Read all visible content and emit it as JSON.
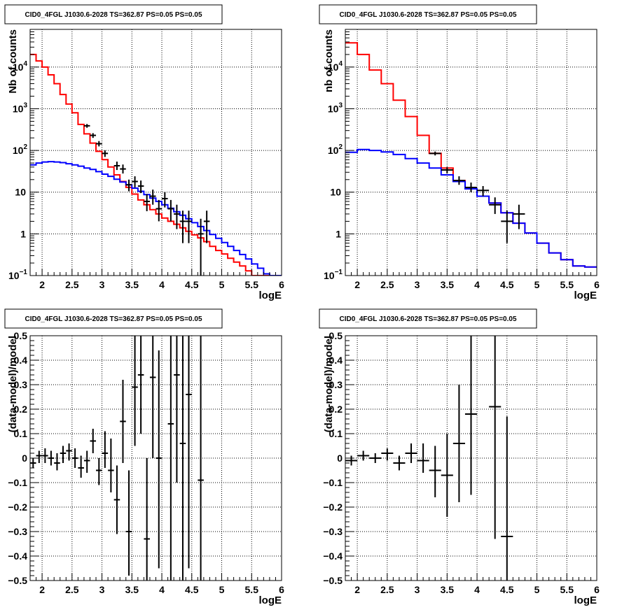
{
  "chart_data": [
    {
      "type": "line",
      "title": "CID0_4FGL J1030.6-2028 TS=362.87 PS=0.05 PS=0.05",
      "xlabel": "logE",
      "ylabel": "Nb of counts",
      "xlim": [
        1.8,
        6.0
      ],
      "ylim": [
        0.1,
        80000
      ],
      "yscale": "log",
      "grid": true,
      "xticks": [
        "2",
        "2.5",
        "3",
        "3.5",
        "4",
        "4.5",
        "5",
        "5.5",
        "6"
      ],
      "yticks": [
        {
          "value": 0.1,
          "base": "10",
          "exp": "−1"
        },
        {
          "value": 1,
          "label": "1"
        },
        {
          "value": 10,
          "label": "10"
        },
        {
          "value": 100,
          "base": "10",
          "exp": "2"
        },
        {
          "value": 1000,
          "base": "10",
          "exp": "3"
        },
        {
          "value": 10000,
          "base": "10",
          "exp": "4"
        }
      ],
      "series": [
        {
          "color": "#ff0000",
          "style": "step",
          "x0": 1.8,
          "binwidth": 0.1,
          "values": [
            20000,
            14000,
            10000,
            6500,
            4000,
            2200,
            1300,
            800,
            420,
            250,
            150,
            95,
            60,
            40,
            26,
            18,
            13,
            9,
            6.5,
            5,
            3.8,
            3,
            2.4,
            2,
            1.7,
            1.4,
            1.15,
            0.95,
            0.8,
            0.65,
            0.5,
            0.4,
            0.33,
            0.26,
            0.21,
            0.17,
            0.13,
            0.1,
            0.085,
            0.07,
            0.06,
            0.05
          ]
        },
        {
          "color": "#0000ff",
          "style": "step",
          "x0": 1.8,
          "binwidth": 0.1,
          "values": [
            45,
            50,
            53,
            54,
            53,
            51,
            48,
            45,
            42,
            38,
            35,
            31,
            27,
            24,
            20.5,
            17.5,
            15,
            12.5,
            10.5,
            8.7,
            7.2,
            6,
            5,
            4.1,
            3.4,
            2.8,
            2.3,
            1.85,
            1.5,
            1.2,
            0.97,
            0.78,
            0.62,
            0.5,
            0.4,
            0.32,
            0.25,
            0.19,
            0.15,
            0.11,
            0.09,
            0.07
          ]
        },
        {
          "color": "#000000",
          "style": "errorbar",
          "xerr": 0.05,
          "points": [
            {
              "x": 2.75,
              "y": 390,
              "lo": 350,
              "hi": 430
            },
            {
              "x": 2.85,
              "y": 230,
              "lo": 200,
              "hi": 260
            },
            {
              "x": 2.95,
              "y": 145,
              "lo": 125,
              "hi": 168
            },
            {
              "x": 3.05,
              "y": 85,
              "lo": 70,
              "hi": 100
            },
            {
              "x": 3.25,
              "y": 43,
              "lo": 34,
              "hi": 54
            },
            {
              "x": 3.35,
              "y": 36,
              "lo": 28,
              "hi": 46
            },
            {
              "x": 3.45,
              "y": 15,
              "lo": 10.5,
              "hi": 20
            },
            {
              "x": 3.55,
              "y": 18,
              "lo": 13,
              "hi": 24
            },
            {
              "x": 3.65,
              "y": 14,
              "lo": 9.5,
              "hi": 19
            },
            {
              "x": 3.75,
              "y": 6,
              "lo": 3.5,
              "hi": 9
            },
            {
              "x": 3.85,
              "y": 8,
              "lo": 5,
              "hi": 11.5
            },
            {
              "x": 3.95,
              "y": 4,
              "lo": 2,
              "hi": 6.5
            },
            {
              "x": 4.05,
              "y": 7,
              "lo": 4.3,
              "hi": 10
            },
            {
              "x": 4.15,
              "y": 4,
              "lo": 2,
              "hi": 6.5
            },
            {
              "x": 4.25,
              "y": 3,
              "lo": 1.3,
              "hi": 5
            },
            {
              "x": 4.35,
              "y": 2,
              "lo": 0.6,
              "hi": 3.6
            },
            {
              "x": 4.45,
              "y": 2,
              "lo": 0.6,
              "hi": 3.6
            },
            {
              "x": 4.65,
              "y": 1,
              "lo": 0.08,
              "hi": 2.3
            },
            {
              "x": 4.75,
              "y": 2,
              "lo": 0.6,
              "hi": 3.6
            }
          ]
        }
      ]
    },
    {
      "type": "line",
      "title": "CID0_4FGL J1030.6-2028 TS=362.87 PS=0.05 PS=0.05",
      "xlabel": "logE",
      "ylabel": "nb of counts",
      "xlim": [
        1.8,
        6.0
      ],
      "ylim": [
        0.1,
        80000
      ],
      "yscale": "log",
      "grid": true,
      "xticks": [
        "2",
        "2.5",
        "3",
        "3.5",
        "4",
        "4.5",
        "5",
        "5.5",
        "6"
      ],
      "yticks": [
        {
          "value": 0.1,
          "base": "10",
          "exp": "−1"
        },
        {
          "value": 1,
          "label": "1"
        },
        {
          "value": 10,
          "label": "10"
        },
        {
          "value": 100,
          "base": "10",
          "exp": "2"
        },
        {
          "value": 1000,
          "base": "10",
          "exp": "3"
        },
        {
          "value": 10000,
          "base": "10",
          "exp": "4"
        }
      ],
      "series": [
        {
          "color": "#ff0000",
          "style": "step",
          "x0": 1.8,
          "binwidth": 0.2,
          "values": [
            38000,
            20000,
            8500,
            4000,
            1600,
            650,
            230,
            85,
            38,
            19,
            12,
            8,
            5.5,
            3.2,
            1.8,
            1.05,
            0.6,
            0.35,
            0.24,
            0.17,
            0.16
          ]
        },
        {
          "color": "#0000ff",
          "style": "step",
          "x0": 1.8,
          "binwidth": 0.2,
          "values": [
            90,
            105,
            100,
            92,
            80,
            64,
            50,
            38,
            26,
            18,
            12,
            8,
            5.5,
            3.2,
            1.8,
            1.05,
            0.6,
            0.35,
            0.24,
            0.17,
            0.16
          ]
        },
        {
          "color": "#000000",
          "style": "errorbar",
          "xerr": 0.1,
          "points": [
            {
              "x": 3.3,
              "y": 85,
              "lo": 76,
              "hi": 94
            },
            {
              "x": 3.5,
              "y": 34,
              "lo": 28,
              "hi": 40
            },
            {
              "x": 3.7,
              "y": 19,
              "lo": 15,
              "hi": 24
            },
            {
              "x": 3.9,
              "y": 13,
              "lo": 10,
              "hi": 17
            },
            {
              "x": 4.1,
              "y": 11,
              "lo": 8,
              "hi": 14
            },
            {
              "x": 4.3,
              "y": 5,
              "lo": 3,
              "hi": 7.5
            },
            {
              "x": 4.5,
              "y": 2,
              "lo": 0.6,
              "hi": 3.6
            },
            {
              "x": 4.7,
              "y": 3,
              "lo": 1.3,
              "hi": 5
            }
          ]
        }
      ]
    },
    {
      "type": "scatter",
      "title": "CID0_4FGL J1030.6-2028 TS=362.87 PS=0.05 PS=0.05",
      "xlabel": "logE",
      "ylabel": "(data-model)/model",
      "xlim": [
        1.8,
        6.0
      ],
      "ylim": [
        -0.5,
        0.5
      ],
      "yscale": "linear",
      "grid": true,
      "xticks": [
        "2",
        "2.5",
        "3",
        "3.5",
        "4",
        "4.5",
        "5",
        "5.5",
        "6"
      ],
      "yticks": [
        "−0.5",
        "−0.4",
        "−0.3",
        "−0.2",
        "−0.1",
        "0",
        "0.1",
        "0.2",
        "0.3",
        "0.4",
        "0.5"
      ],
      "series": [
        {
          "color": "#000000",
          "style": "errorbar",
          "xerr": 0.05,
          "points": [
            {
              "x": 1.85,
              "y": -0.02,
              "lo": -0.04,
              "hi": 0.0
            },
            {
              "x": 1.95,
              "y": 0.01,
              "lo": -0.02,
              "hi": 0.03
            },
            {
              "x": 2.05,
              "y": 0.01,
              "lo": -0.02,
              "hi": 0.04
            },
            {
              "x": 2.15,
              "y": 0.0,
              "lo": -0.03,
              "hi": 0.03
            },
            {
              "x": 2.25,
              "y": -0.02,
              "lo": -0.05,
              "hi": 0.02
            },
            {
              "x": 2.35,
              "y": 0.02,
              "lo": -0.02,
              "hi": 0.05
            },
            {
              "x": 2.45,
              "y": 0.03,
              "lo": -0.01,
              "hi": 0.06
            },
            {
              "x": 2.55,
              "y": 0.0,
              "lo": -0.04,
              "hi": 0.04
            },
            {
              "x": 2.65,
              "y": -0.04,
              "lo": -0.08,
              "hi": 0.01
            },
            {
              "x": 2.75,
              "y": -0.01,
              "lo": -0.06,
              "hi": 0.03
            },
            {
              "x": 2.85,
              "y": 0.07,
              "lo": 0.02,
              "hi": 0.12
            },
            {
              "x": 2.95,
              "y": -0.05,
              "lo": -0.11,
              "hi": 0.0
            },
            {
              "x": 3.05,
              "y": 0.02,
              "lo": -0.04,
              "hi": 0.11
            },
            {
              "x": 3.15,
              "y": -0.05,
              "lo": -0.14,
              "hi": 0.08
            },
            {
              "x": 3.25,
              "y": -0.17,
              "lo": -0.31,
              "hi": -0.03
            },
            {
              "x": 3.35,
              "y": 0.15,
              "lo": -0.02,
              "hi": 0.32
            },
            {
              "x": 3.45,
              "y": -0.3,
              "lo": -0.48,
              "hi": -0.05
            },
            {
              "x": 3.55,
              "y": 0.29,
              "lo": 0.05,
              "hi": 0.5
            },
            {
              "x": 3.65,
              "y": 0.34,
              "lo": 0.1,
              "hi": 0.5
            },
            {
              "x": 3.75,
              "y": -0.33,
              "lo": -0.5,
              "hi": 0.0
            },
            {
              "x": 3.85,
              "y": 0.33,
              "lo": 0.0,
              "hi": 0.5
            },
            {
              "x": 3.95,
              "y": 0.0,
              "lo": -0.45,
              "hi": 0.44
            },
            {
              "x": 4.15,
              "y": 0.14,
              "lo": -0.5,
              "hi": 0.5
            },
            {
              "x": 4.25,
              "y": 0.34,
              "lo": -0.1,
              "hi": 0.5
            },
            {
              "x": 4.35,
              "y": 0.06,
              "lo": -0.5,
              "hi": 0.5
            },
            {
              "x": 4.45,
              "y": 0.26,
              "lo": -0.45,
              "hi": 0.5
            },
            {
              "x": 4.65,
              "y": -0.09,
              "lo": -0.5,
              "hi": 0.5
            }
          ]
        }
      ]
    },
    {
      "type": "scatter",
      "title": "CID0_4FGL J1030.6-2028 TS=362.87 PS=0.05 PS=0.05",
      "xlabel": "logE",
      "ylabel": "(data-model)/model",
      "xlim": [
        1.8,
        6.0
      ],
      "ylim": [
        -0.5,
        0.5
      ],
      "yscale": "linear",
      "grid": true,
      "xticks": [
        "2",
        "2.5",
        "3",
        "3.5",
        "4",
        "4.5",
        "5",
        "5.5",
        "6"
      ],
      "yticks": [
        "−0.5",
        "−0.4",
        "−0.3",
        "−0.2",
        "−0.1",
        "0",
        "0.1",
        "0.2",
        "0.3",
        "0.4",
        "0.5"
      ],
      "series": [
        {
          "color": "#000000",
          "style": "errorbar",
          "xerr": 0.1,
          "points": [
            {
              "x": 1.9,
              "y": -0.01,
              "lo": -0.03,
              "hi": 0.01
            },
            {
              "x": 2.1,
              "y": 0.01,
              "lo": -0.01,
              "hi": 0.03
            },
            {
              "x": 2.3,
              "y": 0.0,
              "lo": -0.02,
              "hi": 0.02
            },
            {
              "x": 2.5,
              "y": 0.02,
              "lo": -0.01,
              "hi": 0.04
            },
            {
              "x": 2.7,
              "y": -0.02,
              "lo": -0.05,
              "hi": 0.01
            },
            {
              "x": 2.9,
              "y": 0.02,
              "lo": -0.02,
              "hi": 0.06
            },
            {
              "x": 3.1,
              "y": -0.01,
              "lo": -0.06,
              "hi": 0.06
            },
            {
              "x": 3.3,
              "y": -0.05,
              "lo": -0.16,
              "hi": 0.05
            },
            {
              "x": 3.5,
              "y": -0.07,
              "lo": -0.24,
              "hi": 0.1
            },
            {
              "x": 3.7,
              "y": 0.06,
              "lo": -0.18,
              "hi": 0.3
            },
            {
              "x": 3.9,
              "y": 0.18,
              "lo": -0.15,
              "hi": 0.5
            },
            {
              "x": 4.3,
              "y": 0.21,
              "lo": -0.33,
              "hi": 0.5
            },
            {
              "x": 4.5,
              "y": -0.32,
              "lo": -0.5,
              "hi": 0.17
            }
          ]
        }
      ]
    }
  ]
}
